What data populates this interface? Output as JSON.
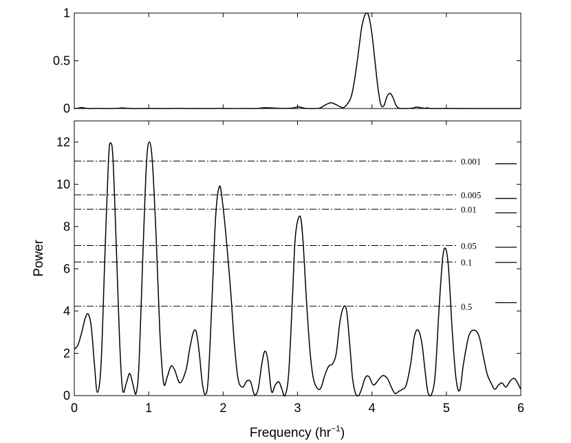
{
  "chart_data": [
    {
      "id": "window",
      "type": "line",
      "xlim": [
        0,
        6
      ],
      "ylim": [
        0,
        1
      ],
      "yticks": [
        0,
        0.5,
        1
      ],
      "ytick_labels": [
        "0",
        "0.5",
        "1"
      ],
      "xticks": [
        0,
        1,
        2,
        3,
        4,
        5,
        6
      ],
      "series": [
        {
          "x": [
            0,
            0.05,
            0.1,
            0.15,
            0.2,
            0.3,
            0.45,
            0.6,
            0.65,
            0.7,
            0.8,
            1.0,
            1.2,
            1.4,
            1.5,
            1.6,
            1.8,
            1.95,
            2.1,
            2.3,
            2.45,
            2.55,
            2.65,
            2.75,
            2.85,
            2.95,
            3.0,
            3.05,
            3.1,
            3.2,
            3.3,
            3.38,
            3.45,
            3.52,
            3.6,
            3.65,
            3.72,
            3.77,
            3.82,
            3.86,
            3.9,
            3.93,
            3.96,
            4.0,
            4.04,
            4.08,
            4.12,
            4.16,
            4.2,
            4.24,
            4.28,
            4.32,
            4.36,
            4.45,
            4.55,
            4.6,
            4.7,
            4.75,
            4.8,
            5.0,
            5.3,
            6.0
          ],
          "y": [
            0,
            0.003,
            0.01,
            0.003,
            0,
            0.002,
            0,
            0.003,
            0.006,
            0.003,
            0,
            0.001,
            0,
            0.002,
            0,
            0.001,
            0,
            0.002,
            0,
            0.001,
            0,
            0.008,
            0.006,
            0.003,
            0.002,
            0.006,
            0.018,
            0.012,
            0.003,
            0,
            0.005,
            0.04,
            0.06,
            0.04,
            0.01,
            0.03,
            0.12,
            0.32,
            0.6,
            0.84,
            0.97,
            1.0,
            0.96,
            0.78,
            0.5,
            0.22,
            0.04,
            0.03,
            0.12,
            0.16,
            0.12,
            0.04,
            0.005,
            0,
            0.005,
            0.015,
            0.003,
            0.006,
            0,
            0.001,
            0,
            0
          ]
        }
      ]
    },
    {
      "id": "periodogram",
      "type": "line",
      "xlabel": "Frequency (hr",
      "xlabel_sup": "−1",
      "xlabel_close": ")",
      "ylabel": "Power",
      "xlim": [
        0,
        6
      ],
      "ylim": [
        0,
        13
      ],
      "xticks": [
        0,
        1,
        2,
        3,
        4,
        5,
        6
      ],
      "xtick_labels": [
        "0",
        "1",
        "2",
        "3",
        "4",
        "5",
        "6"
      ],
      "yticks": [
        0,
        2,
        4,
        6,
        8,
        10,
        12
      ],
      "ytick_labels": [
        "0",
        "2",
        "4",
        "6",
        "8",
        "10",
        "12"
      ],
      "series": [
        {
          "x": [
            0,
            0.05,
            0.1,
            0.15,
            0.19,
            0.23,
            0.27,
            0.31,
            0.36,
            0.41,
            0.46,
            0.49,
            0.52,
            0.56,
            0.61,
            0.65,
            0.7,
            0.745,
            0.79,
            0.83,
            0.87,
            0.92,
            0.97,
            1.01,
            1.05,
            1.1,
            1.15,
            1.2,
            1.25,
            1.3,
            1.35,
            1.42,
            1.5,
            1.55,
            1.6,
            1.64,
            1.68,
            1.72,
            1.76,
            1.8,
            1.85,
            1.9,
            1.95,
            1.99,
            2.04,
            2.1,
            2.15,
            2.2,
            2.26,
            2.32,
            2.37,
            2.42,
            2.47,
            2.52,
            2.56,
            2.6,
            2.65,
            2.7,
            2.75,
            2.79,
            2.83,
            2.88,
            2.93,
            2.97,
            3.03,
            3.07,
            3.12,
            3.17,
            3.22,
            3.3,
            3.37,
            3.42,
            3.47,
            3.52,
            3.57,
            3.62,
            3.66,
            3.7,
            3.74,
            3.78,
            3.82,
            3.86,
            3.91,
            3.96,
            4.02,
            4.1,
            4.15,
            4.21,
            4.26,
            4.31,
            4.36,
            4.41,
            4.46,
            4.52,
            4.57,
            4.62,
            4.67,
            4.71,
            4.75,
            4.8,
            4.85,
            4.9,
            4.95,
            4.99,
            5.03,
            5.08,
            5.13,
            5.18,
            5.23,
            5.3,
            5.37,
            5.44,
            5.5,
            5.55,
            5.6,
            5.65,
            5.7,
            5.75,
            5.8,
            5.86,
            5.92,
            6.0
          ],
          "y": [
            2.2,
            2.4,
            3.0,
            3.7,
            3.85,
            3.2,
            1.5,
            0.15,
            1.5,
            6.5,
            11.2,
            11.95,
            11.2,
            7.5,
            2.5,
            0.25,
            0.6,
            1.05,
            0.5,
            0.1,
            1.5,
            6.5,
            11.0,
            12.0,
            11.0,
            7.5,
            3.0,
            0.6,
            0.9,
            1.4,
            1.2,
            0.6,
            1.2,
            2.2,
            3.0,
            3.0,
            2.0,
            0.6,
            0.05,
            0.8,
            4.5,
            8.5,
            9.9,
            9.2,
            7.5,
            5.0,
            2.5,
            0.8,
            0.4,
            0.7,
            0.65,
            0.05,
            0.3,
            1.5,
            2.1,
            1.7,
            0.2,
            0.5,
            0.65,
            0.3,
            0.0,
            1.0,
            4.5,
            7.5,
            8.5,
            7.5,
            4.5,
            2.0,
            0.7,
            0.3,
            1.0,
            1.4,
            1.5,
            2.0,
            3.5,
            4.2,
            4.0,
            2.5,
            0.8,
            0.1,
            0.0,
            0.3,
            0.85,
            0.9,
            0.5,
            0.8,
            0.95,
            0.8,
            0.4,
            0.1,
            0.2,
            0.3,
            0.5,
            1.5,
            2.8,
            3.1,
            2.5,
            1.3,
            0.2,
            0.05,
            1.0,
            4.0,
            6.5,
            6.95,
            6.0,
            3.0,
            0.8,
            0.25,
            1.5,
            2.8,
            3.1,
            2.8,
            1.8,
            1.0,
            0.6,
            0.3,
            0.5,
            0.6,
            0.4,
            0.7,
            0.8,
            0.3
          ]
        }
      ],
      "significance": [
        {
          "label": "0.001",
          "y": 11.1,
          "mark_y": 10.97
        },
        {
          "label": "0.005",
          "y": 9.5,
          "mark_y": 9.33
        },
        {
          "label": "0.01",
          "y": 8.82,
          "mark_y": 8.65
        },
        {
          "label": "0.05",
          "y": 7.1,
          "mark_y": 7.02
        },
        {
          "label": "0.1",
          "y": 6.32,
          "mark_y": 6.3
        },
        {
          "label": "0.5",
          "y": 4.23,
          "mark_y": 4.4
        }
      ]
    }
  ]
}
